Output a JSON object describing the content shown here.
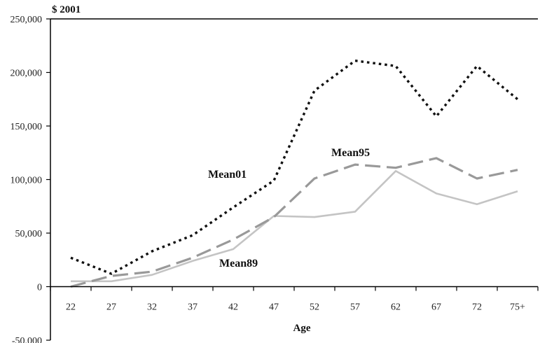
{
  "chart_data": {
    "type": "line",
    "ylabel": "$ 2001",
    "xlabel": "Age",
    "categories": [
      "22",
      "27",
      "32",
      "37",
      "42",
      "47",
      "52",
      "57",
      "62",
      "67",
      "72",
      "75+"
    ],
    "y_ticks": [
      "250,000",
      "200,000",
      "150,000",
      "100,000",
      "50,000",
      "0",
      "-50,000"
    ],
    "ylim": [
      -50000,
      250000
    ],
    "grid": false,
    "legend": "none",
    "series": [
      {
        "name": "Mean01",
        "values": [
          27000,
          12000,
          33000,
          48000,
          74000,
          99000,
          183000,
          211000,
          206000,
          159000,
          206000,
          175000
        ],
        "color": "#111111",
        "style": "dotted"
      },
      {
        "name": "Mean95",
        "values": [
          0,
          10000,
          14000,
          27000,
          44000,
          65000,
          101000,
          114000,
          111000,
          120000,
          101000,
          109000
        ],
        "color": "#999999",
        "style": "dashed"
      },
      {
        "name": "Mean89",
        "values": [
          5000,
          5000,
          11000,
          24000,
          35000,
          66000,
          65000,
          70000,
          108000,
          87000,
          77000,
          89000
        ],
        "color": "#c4c4c4",
        "style": "solid"
      }
    ]
  }
}
